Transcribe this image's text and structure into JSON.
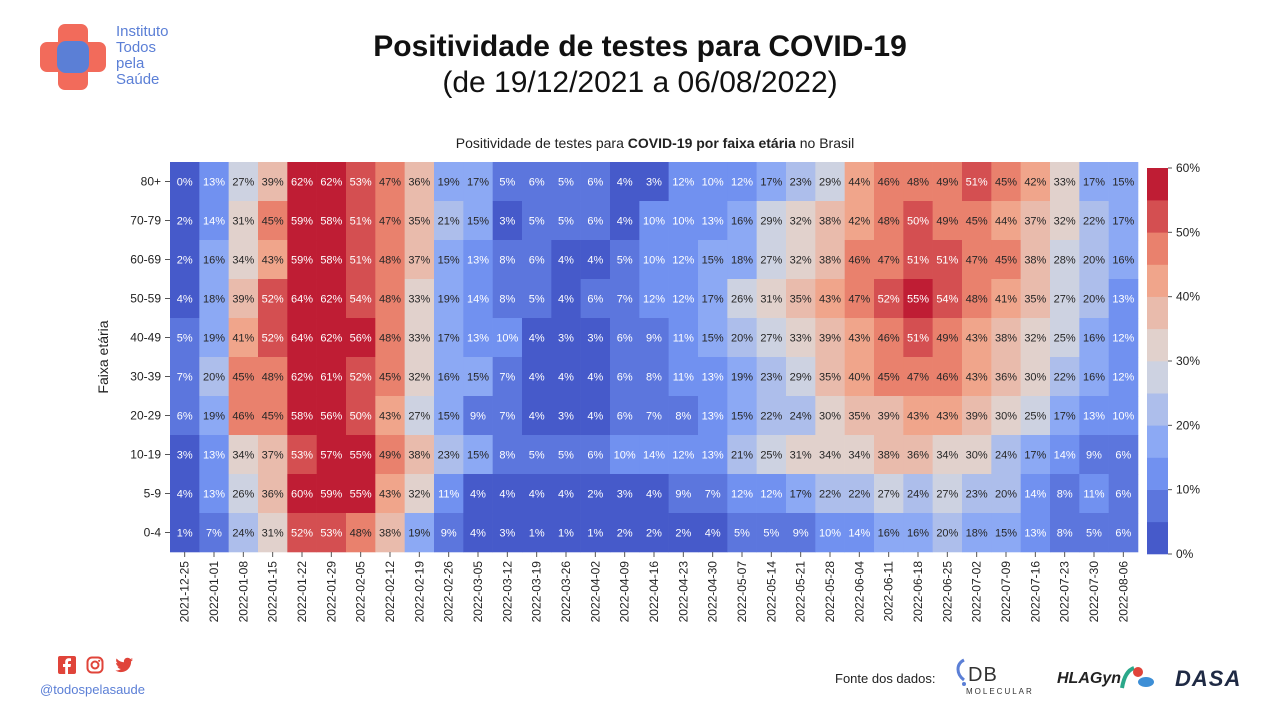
{
  "logo": {
    "lines": [
      "Instituto",
      "Todos",
      "pela",
      "Saúde"
    ]
  },
  "header": {
    "title": "Positividade de testes para COVID-19",
    "subtitle": "(de 19/12/2021 a 06/08/2022)"
  },
  "chart_title": {
    "prefix": "Positividade de testes para ",
    "bold1": "COVID-19 por faixa etária",
    "suffix": " no Brasil"
  },
  "footer": {
    "handle": "@todospelasaude",
    "source_label": "Fonte dos dados:",
    "brands": [
      "DB",
      "MOLECULAR",
      "HLAGyn",
      "DASA"
    ]
  },
  "colors": {
    "low": "#3b4cc0",
    "mid": "#dddcdc",
    "high": "#b40426"
  },
  "chart_data": {
    "type": "heatmap",
    "ylabel": "Faixa etária",
    "xlabel": "",
    "x": [
      "2021-12-25",
      "2022-01-01",
      "2022-01-08",
      "2022-01-15",
      "2022-01-22",
      "2022-01-29",
      "2022-02-05",
      "2022-02-12",
      "2022-02-19",
      "2022-02-26",
      "2022-03-05",
      "2022-03-12",
      "2022-03-19",
      "2022-03-26",
      "2022-04-02",
      "2022-04-09",
      "2022-04-16",
      "2022-04-23",
      "2022-04-30",
      "2022-05-07",
      "2022-05-14",
      "2022-05-21",
      "2022-05-28",
      "2022-06-04",
      "2022-06-11",
      "2022-06-18",
      "2022-06-25",
      "2022-07-02",
      "2022-07-09",
      "2022-07-16",
      "2022-07-23",
      "2022-07-30",
      "2022-08-06"
    ],
    "y": [
      "80+",
      "70-79",
      "60-69",
      "50-59",
      "40-49",
      "30-39",
      "20-29",
      "10-19",
      "5-9",
      "0-4"
    ],
    "values": [
      [
        0,
        13,
        27,
        39,
        62,
        62,
        53,
        47,
        36,
        19,
        17,
        5,
        6,
        5,
        6,
        4,
        3,
        12,
        10,
        12,
        17,
        23,
        29,
        44,
        46,
        48,
        49,
        51,
        45,
        42,
        33,
        17,
        15
      ],
      [
        2,
        14,
        31,
        45,
        59,
        58,
        51,
        47,
        35,
        21,
        15,
        3,
        5,
        5,
        6,
        4,
        10,
        10,
        13,
        16,
        29,
        32,
        38,
        42,
        48,
        50,
        49,
        45,
        44,
        37,
        32,
        22,
        17
      ],
      [
        2,
        16,
        34,
        43,
        59,
        58,
        51,
        48,
        37,
        15,
        13,
        8,
        6,
        4,
        4,
        5,
        10,
        12,
        15,
        18,
        27,
        32,
        38,
        46,
        47,
        51,
        51,
        47,
        45,
        38,
        28,
        20,
        16
      ],
      [
        4,
        18,
        39,
        52,
        64,
        62,
        54,
        48,
        33,
        19,
        14,
        8,
        5,
        4,
        6,
        7,
        12,
        12,
        17,
        26,
        31,
        35,
        43,
        47,
        52,
        55,
        54,
        48,
        41,
        35,
        27,
        20,
        13
      ],
      [
        5,
        19,
        41,
        52,
        64,
        62,
        56,
        48,
        33,
        17,
        13,
        10,
        4,
        3,
        3,
        6,
        9,
        11,
        15,
        20,
        27,
        33,
        39,
        43,
        46,
        51,
        49,
        43,
        38,
        32,
        25,
        16,
        12
      ],
      [
        7,
        20,
        45,
        48,
        62,
        61,
        52,
        45,
        32,
        16,
        15,
        7,
        4,
        4,
        4,
        6,
        8,
        11,
        13,
        19,
        23,
        29,
        35,
        40,
        45,
        47,
        46,
        43,
        36,
        30,
        22,
        16,
        12
      ],
      [
        6,
        19,
        46,
        45,
        58,
        56,
        50,
        43,
        27,
        15,
        9,
        7,
        4,
        3,
        4,
        6,
        7,
        8,
        13,
        15,
        22,
        24,
        30,
        35,
        39,
        43,
        43,
        39,
        30,
        25,
        17,
        13,
        10
      ],
      [
        3,
        13,
        34,
        37,
        53,
        57,
        55,
        49,
        38,
        23,
        15,
        8,
        5,
        5,
        6,
        10,
        14,
        12,
        13,
        21,
        25,
        31,
        34,
        34,
        38,
        36,
        34,
        30,
        24,
        17,
        14,
        9,
        6
      ],
      [
        4,
        13,
        26,
        36,
        60,
        59,
        55,
        43,
        32,
        11,
        4,
        4,
        4,
        4,
        2,
        3,
        4,
        9,
        7,
        12,
        12,
        17,
        22,
        22,
        27,
        24,
        27,
        23,
        20,
        14,
        8,
        11,
        6
      ],
      [
        1,
        7,
        24,
        31,
        52,
        53,
        48,
        38,
        19,
        9,
        4,
        3,
        1,
        1,
        1,
        2,
        2,
        2,
        4,
        5,
        5,
        9,
        10,
        14,
        16,
        16,
        20,
        18,
        15,
        13,
        8,
        5,
        6
      ]
    ],
    "colorbar": {
      "min": 0,
      "max": 60,
      "ticks": [
        "0%",
        "10%",
        "20%",
        "30%",
        "40%",
        "50%",
        "60%"
      ]
    },
    "value_suffix": "%"
  }
}
